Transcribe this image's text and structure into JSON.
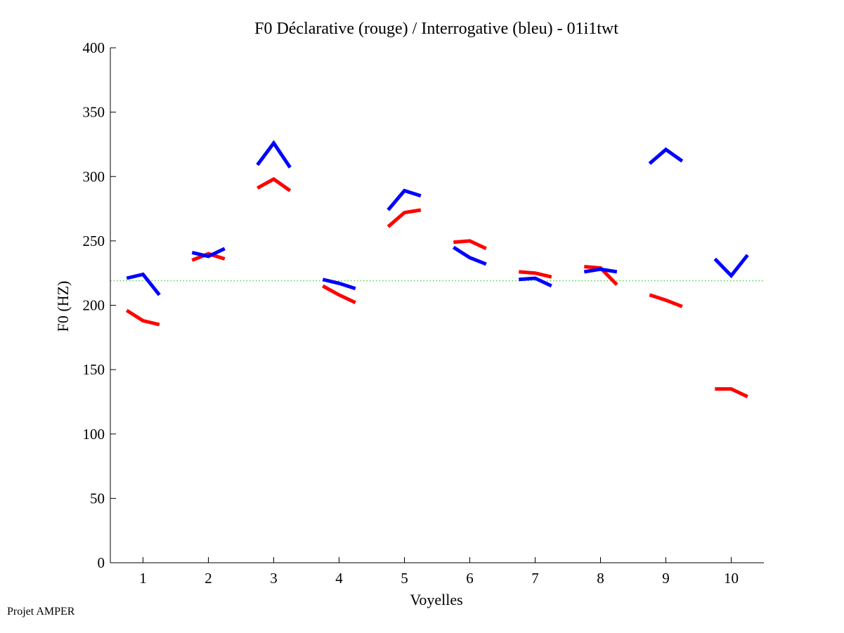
{
  "chart_data": {
    "type": "line",
    "title": "F0 Déclarative (rouge) / Interrogative (bleu) - 01i1twt",
    "xlabel": "Voyelles",
    "ylabel": "F0 (HZ)",
    "ylim": [
      0,
      400
    ],
    "xlim": [
      0.5,
      10.5
    ],
    "yticks": [
      0,
      50,
      100,
      150,
      200,
      250,
      300,
      350,
      400
    ],
    "ytick_labels": [
      "0",
      "50",
      "100",
      "150",
      "200",
      "250",
      "300",
      "350",
      "400"
    ],
    "xticks": [
      1,
      2,
      3,
      4,
      5,
      6,
      7,
      8,
      9,
      10
    ],
    "xtick_labels": [
      "1",
      "2",
      "3",
      "4",
      "5",
      "6",
      "7",
      "8",
      "9",
      "10"
    ],
    "grid": false,
    "reference_line": {
      "y": 219,
      "color": "#22cc22",
      "style": "dotted"
    },
    "series": [
      {
        "name": "Déclarative",
        "color": "#ff0000",
        "segments": [
          {
            "x": [
              0.75,
              1.0,
              1.25
            ],
            "y": [
              196,
              188,
              185
            ]
          },
          {
            "x": [
              1.75,
              2.0,
              2.25
            ],
            "y": [
              235,
              240,
              236
            ]
          },
          {
            "x": [
              2.75,
              3.0,
              3.25
            ],
            "y": [
              291,
              298,
              289
            ]
          },
          {
            "x": [
              3.75,
              4.0,
              4.25
            ],
            "y": [
              215,
              208,
              202
            ]
          },
          {
            "x": [
              4.75,
              5.0,
              5.25
            ],
            "y": [
              261,
              272,
              274
            ]
          },
          {
            "x": [
              5.75,
              6.0,
              6.25
            ],
            "y": [
              249,
              250,
              244
            ]
          },
          {
            "x": [
              6.75,
              7.0,
              7.25
            ],
            "y": [
              226,
              225,
              222
            ]
          },
          {
            "x": [
              7.75,
              8.0,
              8.25
            ],
            "y": [
              230,
              229,
              216
            ]
          },
          {
            "x": [
              8.75,
              9.0,
              9.25
            ],
            "y": [
              208,
              204,
              199
            ]
          },
          {
            "x": [
              9.75,
              10.0,
              10.25
            ],
            "y": [
              135,
              135,
              129
            ]
          }
        ]
      },
      {
        "name": "Interrogative",
        "color": "#0000ff",
        "segments": [
          {
            "x": [
              0.75,
              1.0,
              1.25
            ],
            "y": [
              221,
              224,
              208
            ]
          },
          {
            "x": [
              1.75,
              2.0,
              2.25
            ],
            "y": [
              241,
              238,
              244
            ]
          },
          {
            "x": [
              2.75,
              3.0,
              3.25
            ],
            "y": [
              309,
              326,
              307
            ]
          },
          {
            "x": [
              3.75,
              4.0,
              4.25
            ],
            "y": [
              220,
              217,
              213
            ]
          },
          {
            "x": [
              4.75,
              5.0,
              5.25
            ],
            "y": [
              274,
              289,
              285
            ]
          },
          {
            "x": [
              5.75,
              6.0,
              6.25
            ],
            "y": [
              245,
              237,
              232
            ]
          },
          {
            "x": [
              6.75,
              7.0,
              7.25
            ],
            "y": [
              220,
              221,
              215
            ]
          },
          {
            "x": [
              7.75,
              8.0,
              8.25
            ],
            "y": [
              226,
              228,
              226
            ]
          },
          {
            "x": [
              8.75,
              9.0,
              9.25
            ],
            "y": [
              310,
              321,
              312
            ]
          },
          {
            "x": [
              9.75,
              10.0,
              10.25
            ],
            "y": [
              236,
              223,
              239
            ]
          }
        ]
      }
    ]
  },
  "footer": {
    "text": "Projet AMPER"
  }
}
